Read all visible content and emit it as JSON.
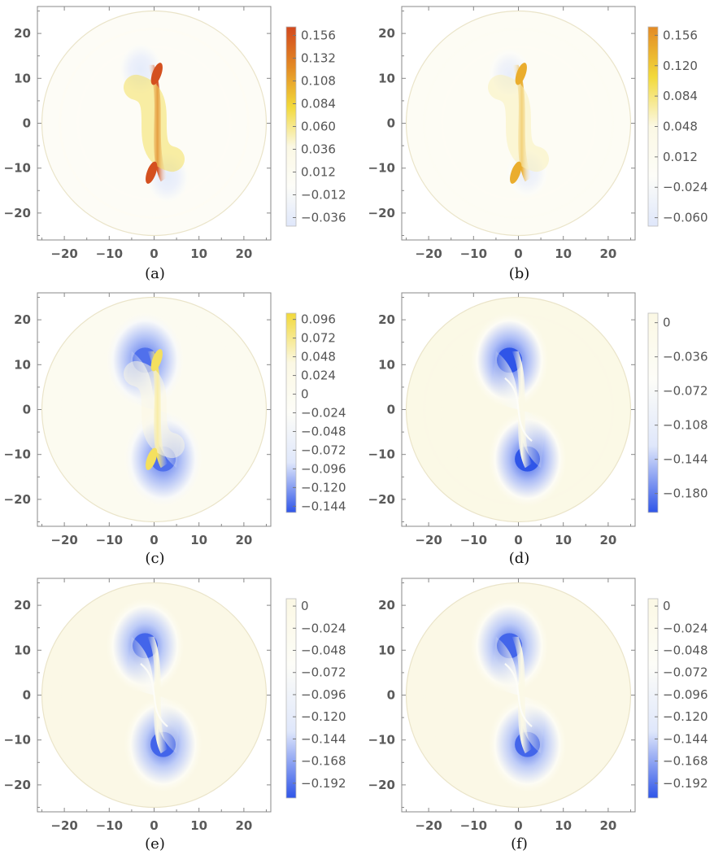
{
  "colors": {
    "pale": "#fbf8e4",
    "white": "#fdfdf8",
    "yellow": "#f2d93a",
    "orange": "#e38a24",
    "red": "#d2481e",
    "blue_light": "#dfe7fb",
    "blue_dark": "#2f55e8",
    "frame": "#888888",
    "disk_edge": "#eae4c9"
  },
  "chart_data": [
    {
      "panel": "(a)",
      "type": "heatmap",
      "x_ticks": [
        "−20",
        "−10",
        "0",
        "10",
        "20"
      ],
      "y_ticks": [
        "20",
        "10",
        "0",
        "−10",
        "−20"
      ],
      "xlim": [
        -26,
        26
      ],
      "ylim": [
        -26,
        26
      ],
      "colorbar_ticks": [
        "0.156",
        "0.132",
        "0.108",
        "0.084",
        "0.060",
        "0.036",
        "0.012",
        "−0.012",
        "−0.036"
      ],
      "colorbar_range": [
        -0.045,
        0.165
      ],
      "color_stops": [
        "blue_light",
        "white",
        "pale",
        "yellow",
        "orange",
        "red"
      ],
      "stripe": {
        "x": 0,
        "y": 0,
        "value": 0.16
      },
      "lobes": [
        {
          "x": -3,
          "y": 12,
          "value": -0.036
        },
        {
          "x": 3,
          "y": -12,
          "value": -0.036
        }
      ]
    },
    {
      "panel": "(b)",
      "type": "heatmap",
      "x_ticks": [
        "−20",
        "−10",
        "0",
        "10",
        "20"
      ],
      "y_ticks": [
        "20",
        "10",
        "0",
        "−10",
        "−20"
      ],
      "xlim": [
        -26,
        26
      ],
      "ylim": [
        -26,
        26
      ],
      "colorbar_ticks": [
        "0.156",
        "0.120",
        "0.084",
        "0.048",
        "0.012",
        "−0.024",
        "−0.060"
      ],
      "colorbar_range": [
        -0.07,
        0.166
      ],
      "color_stops": [
        "blue_light",
        "white",
        "pale",
        "yellow",
        "orange"
      ],
      "stripe": {
        "x": 0,
        "y": 0,
        "value": 0.14
      },
      "lobes": [
        {
          "x": -2,
          "y": 11,
          "value": -0.05
        },
        {
          "x": 2,
          "y": -11,
          "value": -0.05
        }
      ]
    },
    {
      "panel": "(c)",
      "type": "heatmap",
      "x_ticks": [
        "−20",
        "−10",
        "0",
        "10",
        "20"
      ],
      "y_ticks": [
        "20",
        "10",
        "0",
        "−10",
        "−20"
      ],
      "xlim": [
        -26,
        26
      ],
      "ylim": [
        -26,
        26
      ],
      "colorbar_ticks": [
        "0.096",
        "0.072",
        "0.048",
        "0.024",
        "0",
        "−0.024",
        "−0.048",
        "−0.072",
        "−0.096",
        "−0.120",
        "−0.144"
      ],
      "colorbar_range": [
        -0.152,
        0.104
      ],
      "color_stops": [
        "blue_dark",
        "blue_light",
        "white",
        "pale",
        "yellow"
      ],
      "stripe": {
        "x": 0,
        "y": 0,
        "value": 0.09
      },
      "lobes": [
        {
          "x": -2,
          "y": 11,
          "value": -0.14
        },
        {
          "x": 2,
          "y": -11,
          "value": -0.14
        }
      ]
    },
    {
      "panel": "(d)",
      "type": "heatmap",
      "x_ticks": [
        "−20",
        "−10",
        "0",
        "10",
        "20"
      ],
      "y_ticks": [
        "20",
        "10",
        "0",
        "−10",
        "−20"
      ],
      "xlim": [
        -26,
        26
      ],
      "ylim": [
        -26,
        26
      ],
      "colorbar_ticks": [
        "0",
        "−0.036",
        "−0.072",
        "−0.108",
        "−0.144",
        "−0.180"
      ],
      "colorbar_range": [
        -0.2,
        0.01
      ],
      "color_stops": [
        "blue_dark",
        "blue_light",
        "white",
        "pale"
      ],
      "stripe": {
        "x": 0,
        "y": 0,
        "value": 0
      },
      "lobes": [
        {
          "x": -2,
          "y": 11,
          "value": -0.2
        },
        {
          "x": 2,
          "y": -11,
          "value": -0.2
        }
      ]
    },
    {
      "panel": "(e)",
      "type": "heatmap",
      "x_ticks": [
        "−20",
        "−10",
        "0",
        "10",
        "20"
      ],
      "y_ticks": [
        "20",
        "10",
        "0",
        "−10",
        "−20"
      ],
      "xlim": [
        -26,
        26
      ],
      "ylim": [
        -26,
        26
      ],
      "colorbar_ticks": [
        "0",
        "−0.024",
        "−0.048",
        "−0.072",
        "−0.096",
        "−0.120",
        "−0.144",
        "−0.168",
        "−0.192"
      ],
      "colorbar_range": [
        -0.208,
        0.008
      ],
      "color_stops": [
        "blue_dark",
        "blue_light",
        "white",
        "pale"
      ],
      "stripe": {
        "x": 0,
        "y": 0,
        "value": 0
      },
      "lobes": [
        {
          "x": -2,
          "y": 11,
          "value": -0.2
        },
        {
          "x": 2,
          "y": -11,
          "value": -0.2
        }
      ]
    },
    {
      "panel": "(f)",
      "type": "heatmap",
      "x_ticks": [
        "−20",
        "−10",
        "0",
        "10",
        "20"
      ],
      "y_ticks": [
        "20",
        "10",
        "0",
        "−10",
        "−20"
      ],
      "xlim": [
        -26,
        26
      ],
      "ylim": [
        -26,
        26
      ],
      "colorbar_ticks": [
        "0",
        "−0.024",
        "−0.048",
        "−0.072",
        "−0.096",
        "−0.120",
        "−0.144",
        "−0.168",
        "−0.192"
      ],
      "colorbar_range": [
        -0.208,
        0.008
      ],
      "color_stops": [
        "blue_dark",
        "blue_light",
        "white",
        "pale"
      ],
      "stripe": {
        "x": 0,
        "y": 0,
        "value": 0
      },
      "lobes": [
        {
          "x": -2,
          "y": 11,
          "value": -0.2
        },
        {
          "x": 2,
          "y": -11,
          "value": -0.2
        }
      ]
    }
  ]
}
